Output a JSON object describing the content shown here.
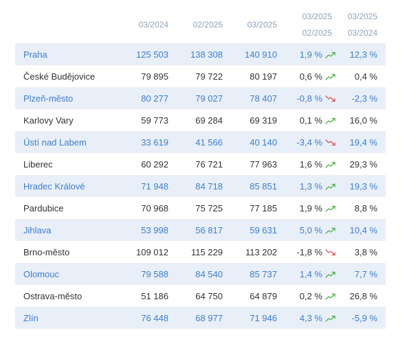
{
  "headers": {
    "c1": "03/2024",
    "c2": "02/2025",
    "c3": "03/2025",
    "c4_top": "03/2025",
    "c4_bottom": "02/2025",
    "c5_top": "03/2025",
    "c5_bottom": "03/2024"
  },
  "colors": {
    "up": "#4bb543",
    "down": "#e05252",
    "highlight_bg": "#e8eff8",
    "highlight_text": "#3f7ed0"
  },
  "rows": [
    {
      "name": "Praha",
      "v1": "125 503",
      "v2": "138 308",
      "v3": "140 910",
      "mom": "1,9 %",
      "trend": "up",
      "yoy": "12,3 %"
    },
    {
      "name": "České Budějovice",
      "v1": "79 895",
      "v2": "79 722",
      "v3": "80 197",
      "mom": "0,6 %",
      "trend": "up",
      "yoy": "0,4 %"
    },
    {
      "name": "Plzeň-město",
      "v1": "80 277",
      "v2": "79 027",
      "v3": "78 407",
      "mom": "-0,8 %",
      "trend": "down",
      "yoy": "-2,3 %"
    },
    {
      "name": "Karlovy Vary",
      "v1": "59 773",
      "v2": "69 284",
      "v3": "69 319",
      "mom": "0,1 %",
      "trend": "up",
      "yoy": "16,0 %"
    },
    {
      "name": "Ústí nad Labem",
      "v1": "33 619",
      "v2": "41 566",
      "v3": "40 140",
      "mom": "-3,4 %",
      "trend": "down",
      "yoy": "19,4 %"
    },
    {
      "name": "Liberec",
      "v1": "60 292",
      "v2": "76 721",
      "v3": "77 963",
      "mom": "1,6 %",
      "trend": "up",
      "yoy": "29,3 %"
    },
    {
      "name": "Hradec Králové",
      "v1": "71 948",
      "v2": "84 718",
      "v3": "85 851",
      "mom": "1,3 %",
      "trend": "up",
      "yoy": "19,3 %"
    },
    {
      "name": "Pardubice",
      "v1": "70 968",
      "v2": "75 725",
      "v3": "77 185",
      "mom": "1,9 %",
      "trend": "up",
      "yoy": "8,8 %"
    },
    {
      "name": "Jihlava",
      "v1": "53 998",
      "v2": "56 817",
      "v3": "59 631",
      "mom": "5,0 %",
      "trend": "up",
      "yoy": "10,4 %"
    },
    {
      "name": "Brno-město",
      "v1": "109 012",
      "v2": "115 229",
      "v3": "113 202",
      "mom": "-1,8 %",
      "trend": "down",
      "yoy": "3,8 %"
    },
    {
      "name": "Olomouc",
      "v1": "79 588",
      "v2": "84 540",
      "v3": "85 737",
      "mom": "1,4 %",
      "trend": "up",
      "yoy": "7,7 %"
    },
    {
      "name": "Ostrava-město",
      "v1": "51 186",
      "v2": "64 750",
      "v3": "64 879",
      "mom": "0,2 %",
      "trend": "up",
      "yoy": "26,8 %"
    },
    {
      "name": "Zlín",
      "v1": "76 448",
      "v2": "68 977",
      "v3": "71 946",
      "mom": "4,3 %",
      "trend": "up",
      "yoy": "-5,9 %"
    }
  ]
}
